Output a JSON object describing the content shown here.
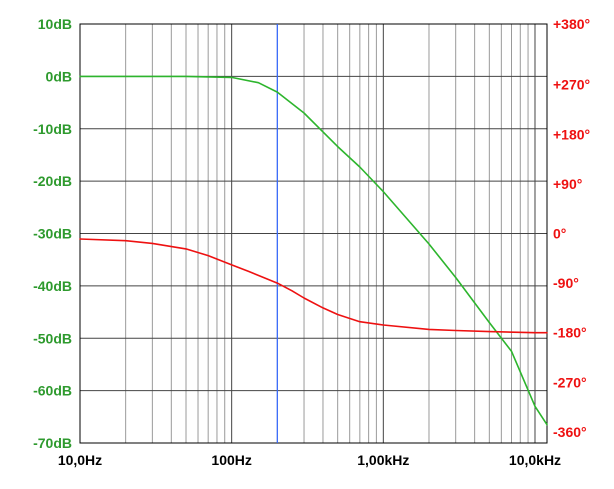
{
  "chart_data": {
    "type": "line",
    "title": "",
    "xlabel": "",
    "ylabel": "",
    "x_scale": "log",
    "xlim": [
      10,
      12000
    ],
    "ylim_left": [
      -70,
      10
    ],
    "ylim_right": [
      -380,
      380
    ],
    "x_ticks": [
      {
        "value": 10,
        "label": "10,0Hz"
      },
      {
        "value": 100,
        "label": "100Hz"
      },
      {
        "value": 1000,
        "label": "1,00kHz"
      },
      {
        "value": 10000,
        "label": "10,0kHz"
      }
    ],
    "y_ticks_left": [
      {
        "value": 10,
        "label": "10dB"
      },
      {
        "value": 0,
        "label": "0dB"
      },
      {
        "value": -10,
        "label": "-10dB"
      },
      {
        "value": -20,
        "label": "-20dB"
      },
      {
        "value": -30,
        "label": "-30dB"
      },
      {
        "value": -40,
        "label": "-40dB"
      },
      {
        "value": -50,
        "label": "-50dB"
      },
      {
        "value": -60,
        "label": "-60dB"
      },
      {
        "value": -70,
        "label": "-70dB"
      }
    ],
    "y_ticks_right": [
      {
        "value": 380,
        "label": "+380°"
      },
      {
        "value": 270,
        "label": "+270°"
      },
      {
        "value": 180,
        "label": "+180°"
      },
      {
        "value": 90,
        "label": "+90°"
      },
      {
        "value": 0,
        "label": "0°"
      },
      {
        "value": -90,
        "label": "-90°"
      },
      {
        "value": -180,
        "label": "-180°"
      },
      {
        "value": -270,
        "label": "-270°"
      },
      {
        "value": -360,
        "label": "-360°"
      }
    ],
    "grid": true,
    "cursor": {
      "x": 200,
      "color": "#3366ff"
    },
    "series": [
      {
        "axis": "left",
        "color": "#2db52d",
        "x": [
          10,
          20,
          50,
          100,
          150,
          200,
          300,
          500,
          700,
          1000,
          2000,
          3000,
          5000,
          7000,
          10000,
          12000
        ],
        "values": [
          0,
          0,
          0,
          -0.2,
          -1.2,
          -3,
          -7,
          -13.4,
          -17.3,
          -22,
          -32,
          -38.4,
          -47,
          -52.5,
          -63,
          -66.5
        ]
      },
      {
        "axis": "right",
        "color": "#ee1111",
        "x": [
          10,
          20,
          30,
          50,
          70,
          100,
          130,
          160,
          200,
          250,
          300,
          400,
          500,
          700,
          1000,
          2000,
          3000,
          5000,
          10000,
          12000
        ],
        "values": [
          -10,
          -13,
          -18,
          -28,
          -40,
          -57,
          -69,
          -79,
          -90,
          -104,
          -117,
          -135,
          -147,
          -160,
          -166,
          -174,
          -176,
          -178,
          -180,
          -180
        ]
      }
    ]
  }
}
